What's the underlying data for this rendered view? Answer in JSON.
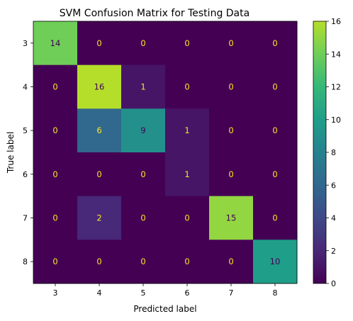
{
  "chart_data": {
    "type": "heatmap",
    "title": "SVM Confusion Matrix for Testing Data",
    "xlabel": "Predicted label",
    "ylabel": "True label",
    "x_categories": [
      "3",
      "4",
      "5",
      "6",
      "7",
      "8"
    ],
    "y_categories": [
      "3",
      "4",
      "5",
      "6",
      "7",
      "8"
    ],
    "values": [
      [
        14,
        0,
        0,
        0,
        0,
        0
      ],
      [
        0,
        16,
        1,
        0,
        0,
        0
      ],
      [
        0,
        6,
        9,
        1,
        0,
        0
      ],
      [
        0,
        0,
        0,
        1,
        0,
        0
      ],
      [
        0,
        2,
        0,
        0,
        15,
        0
      ],
      [
        0,
        0,
        0,
        0,
        0,
        10
      ]
    ],
    "colormap": "viridis",
    "color_range": [
      0,
      16
    ],
    "colorbar_ticks": [
      "0",
      "2",
      "4",
      "6",
      "8",
      "10",
      "12",
      "14",
      "16"
    ],
    "grid": false
  }
}
